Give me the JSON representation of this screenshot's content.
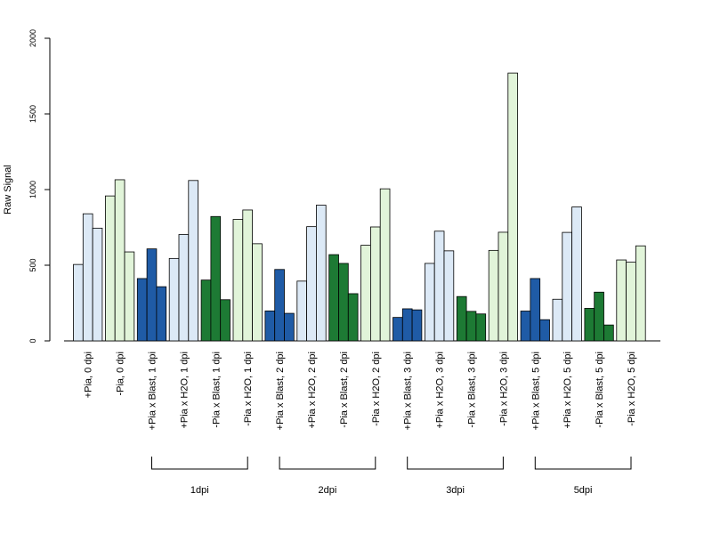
{
  "chart_data": {
    "type": "bar",
    "ylabel": "Raw Signal",
    "ylim": [
      0,
      2000
    ],
    "yticks": [
      0,
      500,
      1000,
      1500,
      2000
    ],
    "bars_per_group": 3,
    "categories": [
      "+Pia, 0 dpi",
      "-Pia, 0 dpi",
      "+Pia x Blast, 1 dpi",
      "+Pia x H2O, 1 dpi",
      "-Pia x Blast, 1 dpi",
      "-Pia x H2O, 1 dpi",
      "+Pia x Blast, 2 dpi",
      "+Pia x H2O, 2 dpi",
      "-Pia x Blast, 2 dpi",
      "-Pia x H2O, 2 dpi",
      "+Pia x Blast, 3 dpi",
      "+Pia x H2O, 3 dpi",
      "-Pia x Blast, 3 dpi",
      "-Pia x H2O, 3 dpi",
      "+Pia x Blast, 5 dpi",
      "+Pia x H2O, 5 dpi",
      "-Pia x Blast, 5 dpi",
      "-Pia x H2O, 5 dpi"
    ],
    "values": [
      [
        505,
        840,
        745
      ],
      [
        958,
        1065,
        588
      ],
      [
        412,
        608,
        358
      ],
      [
        545,
        703,
        1060
      ],
      [
        402,
        822,
        272
      ],
      [
        803,
        865,
        642
      ],
      [
        198,
        472,
        182
      ],
      [
        395,
        755,
        897
      ],
      [
        570,
        512,
        312
      ],
      [
        632,
        753,
        1005
      ],
      [
        155,
        212,
        205
      ],
      [
        512,
        725,
        595
      ],
      [
        293,
        195,
        178
      ],
      [
        598,
        718,
        1770
      ],
      [
        197,
        412,
        140
      ],
      [
        275,
        717,
        885
      ],
      [
        215,
        322,
        105
      ],
      [
        535,
        520,
        628
      ]
    ],
    "colors": [
      "#dce9f6",
      "#e1f4d9",
      "#1f5ba6",
      "#dce9f6",
      "#1d7a34",
      "#e1f4d9",
      "#1f5ba6",
      "#dce9f6",
      "#1d7a34",
      "#e1f4d9",
      "#1f5ba6",
      "#dce9f6",
      "#1d7a34",
      "#e1f4d9",
      "#1f5ba6",
      "#dce9f6",
      "#1d7a34",
      "#e1f4d9"
    ],
    "brackets": [
      {
        "label": "1dpi",
        "from": 2,
        "to": 5
      },
      {
        "label": "2dpi",
        "from": 6,
        "to": 9
      },
      {
        "label": "3dpi",
        "from": 10,
        "to": 13
      },
      {
        "label": "5dpi",
        "from": 14,
        "to": 17
      }
    ],
    "grid": false,
    "legend": "none"
  }
}
